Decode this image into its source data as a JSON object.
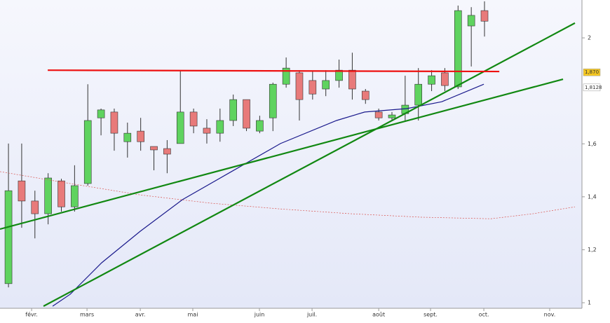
{
  "chart_data": {
    "type": "candlestick",
    "up_color": "#5fd35f",
    "down_color": "#e87a7a",
    "x": [
      0,
      1,
      2,
      3,
      4,
      5,
      6,
      7,
      8,
      9,
      10,
      11,
      12,
      13,
      14,
      15,
      16,
      17,
      18,
      19,
      20,
      21,
      22,
      23,
      24,
      25,
      26,
      27,
      28,
      29,
      30,
      31,
      32,
      33,
      34,
      35,
      36
    ],
    "open": [
      1.072,
      1.46,
      1.384,
      1.336,
      1.46,
      1.362,
      1.45,
      1.698,
      1.72,
      1.608,
      1.648,
      1.59,
      1.582,
      1.601,
      1.72,
      1.659,
      1.64,
      1.688,
      1.767,
      1.648,
      1.698,
      1.825,
      1.868,
      1.839,
      1.807,
      1.839,
      1.878,
      1.799,
      1.72,
      1.698,
      1.714,
      1.746,
      1.825,
      1.868,
      1.815,
      2.045,
      2.103
    ],
    "close": [
      1.423,
      1.384,
      1.336,
      1.471,
      1.362,
      1.442,
      1.688,
      1.728,
      1.64,
      1.64,
      1.608,
      1.577,
      1.561,
      1.72,
      1.667,
      1.64,
      1.688,
      1.767,
      1.659,
      1.688,
      1.825,
      1.886,
      1.767,
      1.788,
      1.839,
      1.878,
      1.807,
      1.767,
      1.698,
      1.709,
      1.746,
      1.825,
      1.857,
      1.82,
      2.103,
      2.085,
      2.063
    ],
    "high": [
      1.601,
      1.601,
      1.423,
      1.489,
      1.468,
      1.519,
      1.825,
      1.733,
      1.733,
      1.68,
      1.698,
      1.59,
      1.614,
      1.878,
      1.733,
      1.693,
      1.733,
      1.786,
      1.767,
      1.706,
      1.831,
      1.926,
      1.878,
      1.873,
      1.878,
      1.918,
      1.944,
      1.807,
      1.733,
      1.72,
      1.857,
      1.886,
      1.878,
      1.886,
      2.122,
      2.116,
      2.138
    ],
    "low": [
      1.058,
      1.283,
      1.243,
      1.296,
      1.344,
      1.344,
      1.442,
      1.632,
      1.574,
      1.548,
      1.574,
      1.5,
      1.489,
      1.601,
      1.64,
      1.601,
      1.608,
      1.667,
      1.648,
      1.64,
      1.648,
      1.812,
      1.688,
      1.767,
      1.78,
      1.812,
      1.767,
      1.751,
      1.688,
      1.688,
      1.688,
      1.688,
      1.799,
      1.799,
      1.807,
      1.892,
      2.005
    ],
    "lines": [
      {
        "color": "#1a1a8c",
        "width": 1.2,
        "dashed": false,
        "x": [
          3.34,
          4.67,
          7.05,
          9.97,
          13.15,
          16.86,
          20.57,
          24.81,
          26.94,
          30.12,
          32.77,
          35.95
        ],
        "values": [
          0.987,
          1.032,
          1.151,
          1.27,
          1.389,
          1.495,
          1.601,
          1.688,
          1.72,
          1.733,
          1.759,
          1.825
        ]
      },
      {
        "color": "#d9534f",
        "width": 0.7,
        "dashed": true,
        "x": [
          -0.64,
          4.67,
          9.97,
          15.27,
          20.57,
          25.87,
          31.18,
          36.48,
          39.66,
          42.84
        ],
        "values": [
          1.495,
          1.45,
          1.407,
          1.376,
          1.354,
          1.336,
          1.323,
          1.317,
          1.336,
          1.362
        ]
      },
      {
        "color": "#118811",
        "width": 2.2,
        "dashed": false,
        "x": [
          -0.64,
          41.94
        ],
        "values": [
          1.278,
          1.844
        ]
      },
      {
        "color": "#118811",
        "width": 2.2,
        "dashed": false,
        "x": [
          2.65,
          42.84
        ],
        "values": [
          0.987,
          2.056
        ]
      },
      {
        "color": "#ee1111",
        "width": 2.2,
        "dashed": false,
        "x": [
          2.97,
          37.12
        ],
        "values": [
          1.878,
          1.873
        ]
      }
    ],
    "value_tags": [
      {
        "value": 1.87,
        "label": "1,870",
        "color": "#f3c623"
      },
      {
        "value": 1.8128,
        "label": "1,8128",
        "color": "#ffffff"
      }
    ],
    "xlim": [
      -0.64,
      43.37
    ],
    "xticks": [
      {
        "value": 1.75,
        "label": "févr."
      },
      {
        "value": 5.94,
        "label": "mars"
      },
      {
        "value": 9.97,
        "label": "avr."
      },
      {
        "value": 13.94,
        "label": "mai"
      },
      {
        "value": 18.98,
        "label": "juin"
      },
      {
        "value": 22.96,
        "label": "juil."
      },
      {
        "value": 28.0,
        "label": "août"
      },
      {
        "value": 31.92,
        "label": "sept."
      },
      {
        "value": 35.95,
        "label": "oct."
      },
      {
        "value": 40.93,
        "label": "nov."
      }
    ],
    "ylim": [
      0.979,
      2.143
    ],
    "yticks": [
      1,
      {
        "value": 1.2,
        "label": "1,2"
      },
      {
        "value": 1.4,
        "label": "1,4"
      },
      {
        "value": 1.6,
        "label": "1,6"
      },
      2
    ]
  }
}
